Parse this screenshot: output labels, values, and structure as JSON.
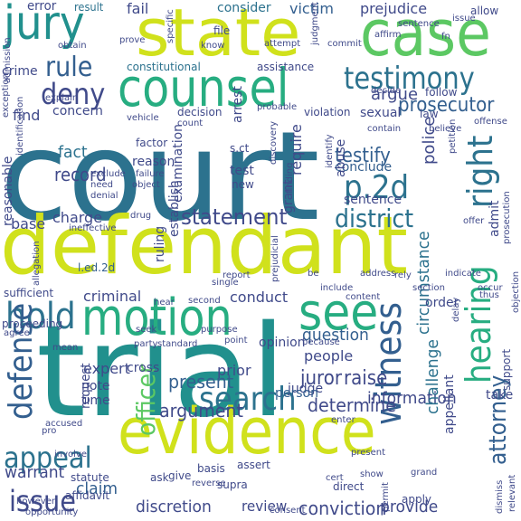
{
  "words": [
    {
      "text": "court"
    },
    {
      "text": "trial"
    },
    {
      "text": "defendant"
    },
    {
      "text": "state"
    },
    {
      "text": "evidence"
    },
    {
      "text": "case"
    },
    {
      "text": "counsel"
    },
    {
      "text": "jury"
    },
    {
      "text": "motion"
    },
    {
      "text": "see"
    },
    {
      "text": "testimony"
    },
    {
      "text": "p.2d"
    },
    {
      "text": "rule"
    },
    {
      "text": "deny"
    },
    {
      "text": "statement"
    },
    {
      "text": "district"
    },
    {
      "text": "search"
    },
    {
      "text": "hold"
    },
    {
      "text": "defense"
    },
    {
      "text": "witness"
    },
    {
      "text": "hearing"
    },
    {
      "text": "right"
    },
    {
      "text": "appeal"
    },
    {
      "text": "issue"
    },
    {
      "text": "officer"
    },
    {
      "text": "conviction"
    },
    {
      "text": "juror"
    },
    {
      "text": "raise"
    },
    {
      "text": "attorney"
    },
    {
      "text": "prosecutor"
    },
    {
      "text": "record"
    },
    {
      "text": "error"
    },
    {
      "text": "result"
    },
    {
      "text": "fail"
    },
    {
      "text": "consider"
    },
    {
      "text": "victim"
    },
    {
      "text": "prejudice"
    },
    {
      "text": "allow"
    },
    {
      "text": "charge"
    },
    {
      "text": "fact"
    },
    {
      "text": "testify"
    },
    {
      "text": "find"
    },
    {
      "text": "argue"
    },
    {
      "text": "present"
    },
    {
      "text": "argument"
    },
    {
      "text": "determine"
    },
    {
      "text": "information"
    },
    {
      "text": "provide"
    },
    {
      "text": "review"
    },
    {
      "text": "discretion"
    },
    {
      "text": "claim"
    },
    {
      "text": "warrant"
    },
    {
      "text": "question"
    },
    {
      "text": "people"
    },
    {
      "text": "judge"
    },
    {
      "text": "prior"
    },
    {
      "text": "opinion"
    },
    {
      "text": "conduct"
    },
    {
      "text": "criminal"
    },
    {
      "text": "expert"
    },
    {
      "text": "note"
    },
    {
      "text": "time"
    },
    {
      "text": "request"
    },
    {
      "text": "conclude"
    },
    {
      "text": "sentence"
    },
    {
      "text": "require"
    },
    {
      "text": "police"
    },
    {
      "text": "admit"
    },
    {
      "text": "base"
    },
    {
      "text": "constitutional"
    },
    {
      "text": "assistance"
    },
    {
      "text": "arrest"
    },
    {
      "text": "concern"
    },
    {
      "text": "examination"
    },
    {
      "text": "sexual"
    },
    {
      "text": "law"
    },
    {
      "text": "follow"
    },
    {
      "text": "circumstance"
    },
    {
      "text": "challenge"
    },
    {
      "text": "appellant"
    },
    {
      "text": "person"
    },
    {
      "text": "take"
    },
    {
      "text": "order"
    },
    {
      "text": "support"
    },
    {
      "text": "cross"
    },
    {
      "text": "ask"
    },
    {
      "text": "give"
    },
    {
      "text": "basis"
    },
    {
      "text": "reasonable"
    },
    {
      "text": "file"
    },
    {
      "text": "know"
    },
    {
      "text": "reason"
    },
    {
      "text": "s.ct"
    },
    {
      "text": "crime"
    },
    {
      "text": "test"
    },
    {
      "text": "new"
    },
    {
      "text": "abuse"
    },
    {
      "text": "establish"
    },
    {
      "text": "ruling"
    },
    {
      "text": "grant"
    },
    {
      "text": "l.ed.2d"
    },
    {
      "text": "second"
    },
    {
      "text": "hear"
    },
    {
      "text": "standard"
    },
    {
      "text": "point"
    },
    {
      "text": "because"
    },
    {
      "text": "affidavit"
    },
    {
      "text": "statute"
    },
    {
      "text": "assert"
    },
    {
      "text": "cert"
    },
    {
      "text": "show"
    },
    {
      "text": "permit"
    },
    {
      "text": "apply"
    },
    {
      "text": "direct"
    },
    {
      "text": "supra"
    },
    {
      "text": "however"
    },
    {
      "text": "consent"
    },
    {
      "text": "reverse"
    },
    {
      "text": "sufficient"
    },
    {
      "text": "proceeding"
    },
    {
      "text": "ineffective"
    },
    {
      "text": "vehicle"
    },
    {
      "text": "decision"
    },
    {
      "text": "probable"
    },
    {
      "text": "violation"
    },
    {
      "text": "contain"
    },
    {
      "text": "believe"
    },
    {
      "text": "offense"
    },
    {
      "text": "decide"
    },
    {
      "text": "factor"
    },
    {
      "text": "exclude"
    },
    {
      "text": "object"
    },
    {
      "text": "need"
    },
    {
      "text": "denial"
    },
    {
      "text": "failure"
    },
    {
      "text": "count"
    },
    {
      "text": "address"
    },
    {
      "text": "report"
    },
    {
      "text": "rely"
    },
    {
      "text": "indicate"
    },
    {
      "text": "section"
    },
    {
      "text": "include"
    },
    {
      "text": "be"
    },
    {
      "text": "agree"
    },
    {
      "text": "party"
    },
    {
      "text": "seek"
    },
    {
      "text": "objection"
    },
    {
      "text": "grand"
    },
    {
      "text": "thus"
    },
    {
      "text": "occur"
    },
    {
      "text": "dismiss"
    },
    {
      "text": "relevant"
    },
    {
      "text": "prosecution"
    },
    {
      "text": "offer"
    },
    {
      "text": "petition"
    },
    {
      "text": "identify"
    },
    {
      "text": "finding"
    },
    {
      "text": "drug"
    },
    {
      "text": "prejudicial"
    },
    {
      "text": "obtain"
    },
    {
      "text": "admission"
    },
    {
      "text": "explain"
    },
    {
      "text": "exception"
    },
    {
      "text": "attempt"
    },
    {
      "text": "judgment"
    },
    {
      "text": "commit"
    },
    {
      "text": "affirm"
    },
    {
      "text": "specific"
    },
    {
      "text": "prove"
    },
    {
      "text": "allegation"
    },
    {
      "text": "mean"
    },
    {
      "text": "involve"
    },
    {
      "text": "accused"
    },
    {
      "text": "fn"
    },
    {
      "text": "delay"
    },
    {
      "text": "enter"
    },
    {
      "text": "single"
    },
    {
      "text": "content"
    },
    {
      "text": "discovery"
    },
    {
      "text": "purpose"
    },
    {
      "text": "identification"
    },
    {
      "text": "pro"
    },
    {
      "text": "issue"
    },
    {
      "text": "sentence"
    },
    {
      "text": "opportunity"
    },
    {
      "text": "present"
    }
  ],
  "palette": {
    "dark_navy": "#3b1c5a",
    "indigo": "#404a8a",
    "blue": "#335f8f",
    "steel_blue": "#2c728e",
    "teal": "#21908d",
    "sea_green": "#27ad81",
    "green": "#5cc863",
    "lime": "#9bd93c",
    "yellow_green": "#d0e11c"
  }
}
